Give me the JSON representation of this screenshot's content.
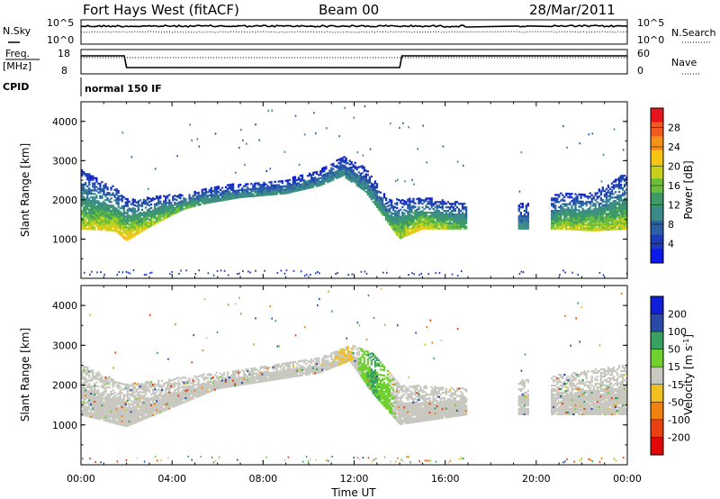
{
  "header": {
    "radar": "Fort Hays West (fitACF)",
    "beam": "Beam 00",
    "date": "28/Mar/2011"
  },
  "top_panels": {
    "nsky_label": "N.Sky",
    "nsky_ticks": [
      "10^5",
      "10^0"
    ],
    "nsearch_label": "N.Search",
    "nsearch_ticks": [
      "10^5",
      "10^0"
    ],
    "freq_label_1": "Freq.",
    "freq_label_2": "[MHz]",
    "freq_ticks": [
      "18",
      "8"
    ],
    "nave_label": "Nave",
    "nave_ticks": [
      "60",
      "0"
    ],
    "cpid_label": "CPID",
    "cpid_value": "normal 150 IF"
  },
  "colorbars": {
    "power": {
      "title": "Power [dB]",
      "ticks": [
        "28",
        "24",
        "20",
        "16",
        "12",
        "8",
        "4"
      ],
      "colors": [
        "#e8141c",
        "#f05a1e",
        "#f5901a",
        "#f7c416",
        "#c9d01c",
        "#6cbf3a",
        "#3d9a66",
        "#3a8a8a",
        "#2c5fa6",
        "#1d3ab8",
        "#0a18e8"
      ]
    },
    "velocity": {
      "title": "Velocity [m s",
      "title_sup": "-1",
      "title_end": "]",
      "ticks": [
        "200",
        "100",
        "50",
        "15",
        "-15",
        "-50",
        "-100",
        "-200"
      ],
      "colors": [
        "#1020d8",
        "#2a4aaa",
        "#38a060",
        "#70d030",
        "#c8c8c0",
        "#f0c020",
        "#f08010",
        "#e84010",
        "#e00808"
      ]
    }
  },
  "chart_data": [
    {
      "type": "heatmap",
      "panel": "power",
      "ylabel": "Slant Range [km]",
      "yticks": [
        "4000",
        "3000",
        "2000",
        "1000"
      ],
      "ylim": [
        0,
        4500
      ],
      "x_start": "00:00",
      "x_end": "00:00",
      "note_gaps": [],
      "band": [
        {
          "t": 0.0,
          "lo": 1250,
          "hi": 2750,
          "peak": 18
        },
        {
          "t": 1.5,
          "lo": 1200,
          "hi": 2300,
          "peak": 20
        },
        {
          "t": 2.0,
          "lo": 950,
          "hi": 2000,
          "peak": 22
        },
        {
          "t": 3.0,
          "lo": 1300,
          "hi": 2050,
          "peak": 18
        },
        {
          "t": 4.5,
          "lo": 1750,
          "hi": 2150,
          "peak": 14
        },
        {
          "t": 5.5,
          "lo": 1900,
          "hi": 2300,
          "peak": 12
        },
        {
          "t": 7.0,
          "lo": 2050,
          "hi": 2400,
          "peak": 10
        },
        {
          "t": 9.0,
          "lo": 2150,
          "hi": 2500,
          "peak": 10
        },
        {
          "t": 10.5,
          "lo": 2350,
          "hi": 2750,
          "peak": 10
        },
        {
          "t": 11.5,
          "lo": 2600,
          "hi": 3100,
          "peak": 10
        },
        {
          "t": 12.5,
          "lo": 2200,
          "hi": 2800,
          "peak": 10
        },
        {
          "t": 13.5,
          "lo": 1400,
          "hi": 2000,
          "peak": 14
        },
        {
          "t": 14.0,
          "lo": 1000,
          "hi": 2000,
          "peak": 18
        },
        {
          "t": 15.0,
          "lo": 1250,
          "hi": 2050,
          "peak": 20
        },
        {
          "t": 17.0,
          "lo": 1250,
          "hi": 1900,
          "peak": 14
        },
        {
          "t": 19.0,
          "lo": 1250,
          "hi": 1900,
          "peak": 12
        },
        {
          "t": 20.0,
          "lo": 1250,
          "hi": 1900,
          "peak": 10
        },
        {
          "t": 21.0,
          "lo": 1250,
          "hi": 2150,
          "peak": 18
        },
        {
          "t": 22.5,
          "lo": 1200,
          "hi": 2150,
          "peak": 18
        },
        {
          "t": 24.0,
          "lo": 1250,
          "hi": 2700,
          "peak": 18
        }
      ],
      "data_gaps_hours": [
        [
          17.0,
          19.2
        ],
        [
          19.7,
          20.6
        ]
      ]
    },
    {
      "type": "heatmap",
      "panel": "velocity",
      "ylabel": "Slant Range [km]",
      "yticks": [
        "4000",
        "3000",
        "2000",
        "1000"
      ],
      "ylim": [
        0,
        4500
      ],
      "xticks": [
        "00:00",
        "04:00",
        "08:00",
        "12:00",
        "16:00",
        "20:00",
        "00:00"
      ],
      "xlabel": "Time UT",
      "band": [
        {
          "t": 0.0,
          "lo": 1250,
          "hi": 2500,
          "v": 0
        },
        {
          "t": 2.0,
          "lo": 950,
          "hi": 2000,
          "v": 0
        },
        {
          "t": 6.0,
          "lo": 1900,
          "hi": 2300,
          "v": 0
        },
        {
          "t": 10.5,
          "lo": 2300,
          "hi": 2700,
          "v": 0
        },
        {
          "t": 11.8,
          "lo": 2600,
          "hi": 3000,
          "v": -20
        },
        {
          "t": 12.8,
          "lo": 1800,
          "hi": 2800,
          "v": 60
        },
        {
          "t": 14.0,
          "lo": 1000,
          "hi": 2000,
          "v": 0
        },
        {
          "t": 17.0,
          "lo": 1250,
          "hi": 1900,
          "v": 0
        },
        {
          "t": 24.0,
          "lo": 1250,
          "hi": 2500,
          "v": 0
        }
      ],
      "data_gaps_hours": [
        [
          17.0,
          19.2
        ],
        [
          19.7,
          20.6
        ]
      ]
    }
  ]
}
